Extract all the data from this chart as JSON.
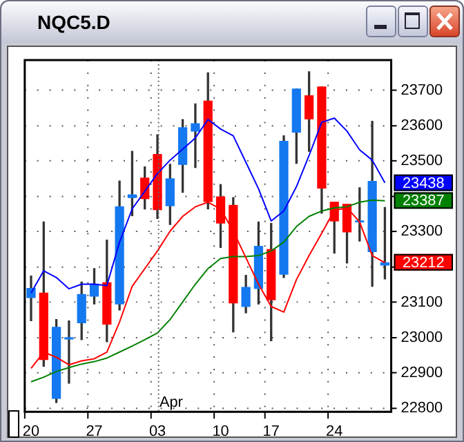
{
  "chart_data": {
    "type": "candlestick",
    "title": "NQC5.D",
    "categories": [
      "20",
      null,
      null,
      null,
      null,
      "27",
      null,
      null,
      null,
      null,
      "03",
      null,
      null,
      null,
      null,
      "10",
      null,
      null,
      null,
      "17",
      null,
      null,
      null,
      null,
      "24",
      null,
      null,
      null,
      null
    ],
    "ohlc": [
      [
        23113,
        23174,
        23048,
        23139
      ],
      [
        23126,
        23327,
        22919,
        22938
      ],
      [
        22828,
        23051,
        22816,
        23029
      ],
      [
        22996,
        23047,
        22871,
        23000
      ],
      [
        23042,
        23157,
        22994,
        23122
      ],
      [
        23117,
        23195,
        23095,
        23151
      ],
      [
        23155,
        23276,
        22988,
        23038
      ],
      [
        23095,
        23443,
        23078,
        23370
      ],
      [
        23396,
        23527,
        23345,
        23404
      ],
      [
        23451,
        23483,
        23364,
        23393
      ],
      [
        23518,
        23574,
        23337,
        23362
      ],
      [
        23373,
        23490,
        23320,
        23449
      ],
      [
        23490,
        23617,
        23411,
        23594
      ],
      [
        23584,
        23661,
        23481,
        23605
      ],
      [
        23669,
        23749,
        23364,
        23385
      ],
      [
        23398,
        23433,
        23255,
        23324
      ],
      [
        23374,
        23396,
        23016,
        23098
      ],
      [
        23088,
        23176,
        23070,
        23142
      ],
      [
        23139,
        23327,
        23095,
        23258
      ],
      [
        23249,
        23323,
        22991,
        23107
      ],
      [
        23179,
        23571,
        23170,
        23555
      ],
      [
        23581,
        23703,
        23493,
        23703
      ],
      [
        23684,
        23752,
        23527,
        23619
      ],
      [
        23709,
        23709,
        23352,
        23423
      ],
      [
        23383,
        23383,
        23239,
        23330
      ],
      [
        23377,
        23377,
        23211,
        23299
      ],
      [
        23327,
        23424,
        23273,
        23330
      ],
      [
        23243,
        23612,
        23145,
        23442
      ],
      [
        23205,
        23368,
        23166,
        23212
      ]
    ],
    "colors": [
      "#1478f0",
      "#ff0000",
      "#1478f0",
      "#1478f0",
      "#1478f0",
      "#1478f0",
      "#ff0000",
      "#1478f0",
      "#1478f0",
      "#ff0000",
      "#ff0000",
      "#1478f0",
      "#1478f0",
      "#1478f0",
      "#ff0000",
      "#ff0000",
      "#ff0000",
      "#1478f0",
      "#1478f0",
      "#ff0000",
      "#1478f0",
      "#1478f0",
      "#ff0000",
      "#ff0000",
      "#ff0000",
      "#ff0000",
      "#1478f0",
      "#1478f0",
      "#1478f0"
    ],
    "series": [
      {
        "type": "line",
        "color": "#0000ff",
        "values": [
          23126,
          23189,
          23170,
          23138,
          23151,
          23151,
          23147,
          23270,
          23364,
          23414,
          23464,
          23502,
          23533,
          23565,
          23617,
          23590,
          23571,
          23496,
          23421,
          23330,
          23358,
          23427,
          23515,
          23609,
          23621,
          23584,
          23531,
          23502,
          23438
        ],
        "value_labels": [
          null,
          null,
          null,
          null,
          null,
          null,
          null,
          null,
          null,
          null,
          null,
          null,
          null,
          null,
          null,
          null,
          null,
          null,
          null,
          null,
          null,
          null,
          null,
          null,
          null,
          null,
          null,
          null,
          "23438"
        ]
      },
      {
        "type": "line",
        "color": "#ff0000",
        "values": [
          22913,
          22959,
          22944,
          22923,
          22934,
          22940,
          22959,
          23044,
          23145,
          23195,
          23245,
          23301,
          23343,
          23370,
          23383,
          23364,
          23301,
          23226,
          23151,
          23088,
          23072,
          23164,
          23232,
          23295,
          23360,
          23367,
          23327,
          23232,
          23212
        ],
        "value_labels": [
          null,
          null,
          null,
          null,
          null,
          null,
          null,
          null,
          null,
          null,
          null,
          null,
          null,
          null,
          null,
          null,
          null,
          null,
          null,
          null,
          null,
          null,
          null,
          null,
          null,
          null,
          null,
          null,
          "23212"
        ]
      },
      {
        "type": "line",
        "color": "#008000",
        "values": [
          22875,
          22888,
          22904,
          22915,
          22925,
          22932,
          22942,
          22959,
          22976,
          22994,
          23013,
          23051,
          23101,
          23151,
          23195,
          23224,
          23229,
          23229,
          23232,
          23245,
          23270,
          23314,
          23343,
          23358,
          23367,
          23370,
          23383,
          23389,
          23387
        ],
        "value_labels": [
          null,
          null,
          null,
          null,
          null,
          null,
          null,
          null,
          null,
          null,
          null,
          null,
          null,
          null,
          null,
          null,
          null,
          null,
          null,
          null,
          null,
          null,
          null,
          null,
          null,
          null,
          null,
          null,
          "23387"
        ]
      }
    ],
    "ylim": [
      22790,
      23785
    ],
    "yticks": [
      22800,
      22900,
      23000,
      23100,
      {
        "value": 23200,
        "label": null
      },
      23300,
      {
        "value": 23400,
        "label": null
      },
      23500,
      23600,
      23700
    ],
    "grid": true,
    "marker": "none",
    "ref_lines": [
      {
        "axis": "x",
        "value": "03",
        "line_style": "dotted"
      }
    ],
    "annotations": [
      {
        "text": "Apr",
        "x": "03"
      }
    ]
  }
}
